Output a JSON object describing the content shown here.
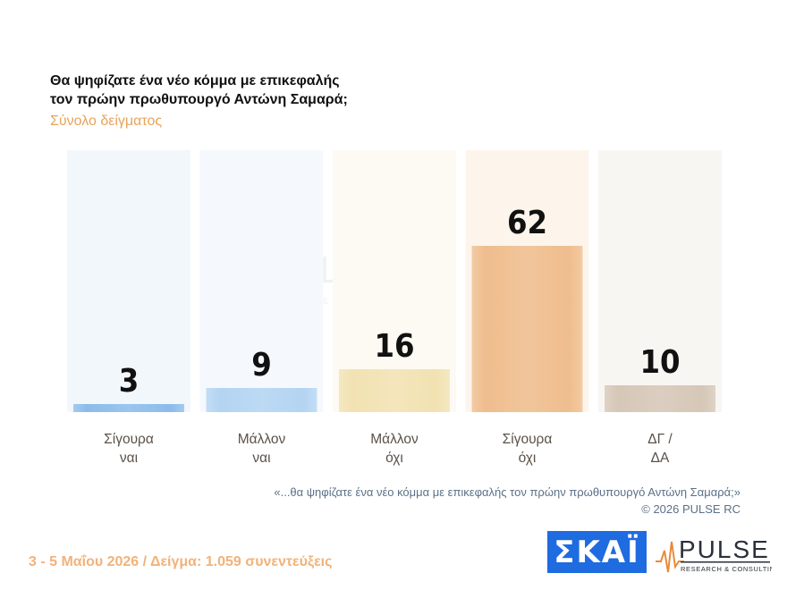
{
  "title_lines": [
    "Θα ψηφίζατε ένα νέο κόμμα με επικεφαλής",
    "τον πρώην πρωθυπουργό Αντώνη Σαμαρά;"
  ],
  "subtitle": "Σύνολο δείγματος",
  "chart_data": {
    "type": "bar",
    "title": "Θα ψηφίζατε ένα νέο κόμμα με επικεφαλής τον πρώην πρωθυπουργό Αντώνη Σαμαρά;",
    "categories": [
      [
        "Σίγουρα",
        "ναι"
      ],
      [
        "Μάλλον",
        "ναι"
      ],
      [
        "Μάλλον",
        "όχι"
      ],
      [
        "Σίγουρα",
        "όχι"
      ],
      [
        "ΔΓ /",
        "ΔΑ"
      ]
    ],
    "values": [
      3,
      9,
      16,
      62,
      10
    ],
    "colors": [
      "#8bbcea",
      "#b3d4f2",
      "#f2e2b2",
      "#efbd8d",
      "#d6c7b7"
    ],
    "background_colors": [
      "#f2f7fc",
      "#f5f9fd",
      "#fdfaf3",
      "#fdf5ec",
      "#f8f6f3"
    ],
    "ylim": [
      0,
      100
    ],
    "grid": false,
    "legend": "none"
  },
  "watermark": {
    "brand": "PULSE",
    "tagline": "RESEARCH & CONSULTING"
  },
  "footnote": {
    "question": "«...θα ψηφίζατε ένα νέο κόμμα με επικεφαλής τον πρώην πρωθυπουργό Αντώνη Σαμαρά;»",
    "copyright": "©  2026  PULSE RC"
  },
  "footer": "3 - 5  Μαΐου 2026  /  Δείγμα:  1.059 συνεντεύξεις",
  "logos": {
    "skai": "ΣΚΑΪ",
    "pulse": "PULSE",
    "pulse_tagline": "RESEARCH & CONSULTING",
    "pulse_icon": "heartbeat-line-icon"
  },
  "accent_colors": {
    "subtitle": "#e8a35a",
    "footer": "#f2b27a",
    "skai_blue": "#1f6be0",
    "footnote": "#5b7088"
  }
}
